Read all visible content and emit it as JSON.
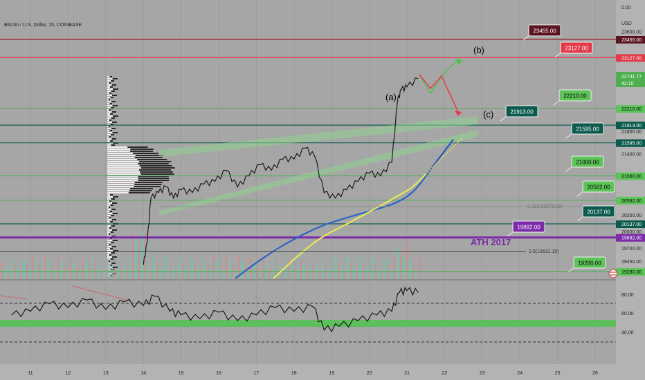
{
  "header": {
    "symbol_title": "Bitcoin / U.S. Dollar, 1h, COINBASE"
  },
  "price_axis": {
    "currency": "USD",
    "top_value": "0.00",
    "ticks": [
      "23600.00",
      "21800.00",
      "21400.00",
      "20300.00",
      "20000.00",
      "19700.00"
    ],
    "current_price": "22741.77",
    "countdown": "42:10"
  },
  "x_axis": {
    "ticks": [
      "11",
      "12",
      "13",
      "14",
      "15",
      "16",
      "17",
      "18",
      "19",
      "20",
      "21",
      "22",
      "23",
      "24",
      "25",
      "26"
    ]
  },
  "rsi_axis": {
    "ticks": [
      "80.00",
      "60.00",
      "40.00"
    ]
  },
  "levels": [
    {
      "label": "23455.00",
      "value": 23455,
      "color": "#7a1b2a",
      "line": "#9b1c2c",
      "tag_bg": "#5a1520",
      "tag_fg": "#ffffff"
    },
    {
      "label": "23127.00",
      "value": 23127,
      "color": "#e33d4b",
      "line": "#e33d4b",
      "tag_bg": "#e23a48",
      "tag_fg": "#ffffff"
    },
    {
      "label": "22210.00",
      "value": 22210,
      "color": "#56c156",
      "line": "#4fae4f",
      "tag_bg": "#5ec45a",
      "tag_fg": "#000000"
    },
    {
      "label": "21913.00",
      "value": 21913,
      "color": "#0d5c4e",
      "line": "#0f5e52",
      "tag_bg": "#0c5a4d",
      "tag_fg": "#ffffff"
    },
    {
      "label": "21595.00",
      "value": 21595,
      "color": "#0d5c4e",
      "line": "#0f5e52",
      "tag_bg": "#0c5a4d",
      "tag_fg": "#ffffff"
    },
    {
      "label": "21000.00",
      "value": 21000,
      "color": "#56c156",
      "line": "#4fae4f",
      "tag_bg": "#5ec45a",
      "tag_fg": "#000000"
    },
    {
      "label": "20562.00",
      "value": 20562,
      "color": "#56c156",
      "line": "#4fae4f",
      "tag_bg": "#5ec45a",
      "tag_fg": "#000000"
    },
    {
      "label": "20137.00",
      "value": 20137,
      "color": "#0d5c4e",
      "line": "#0f5e52",
      "tag_bg": "#0c5a4d",
      "tag_fg": "#ffffff"
    },
    {
      "label": "19892.00",
      "value": 19892,
      "color": "#7b2aa8",
      "line": "#7b2aa8",
      "tag_bg": "#7b2aa8",
      "tag_fg": "#ffffff"
    },
    {
      "label": "19280.00",
      "value": 19280,
      "color": "#56c156",
      "line": "#4fae4f",
      "tag_bg": "#5ec45a",
      "tag_fg": "#000000"
    }
  ],
  "annotations": {
    "wave_a": "(a)",
    "wave_b": "(b)",
    "wave_c": "(c)",
    "ath": "ATH 2017",
    "fib_0382": "0.382(20378.08)",
    "fib_05": "0.5(19631.15)",
    "extra_tick": "19450.00"
  },
  "colors": {
    "background": "#a6a6a6",
    "axis_bg": "#b3b3b3",
    "ath_color": "#7b2aa8",
    "ma_blue": "#2a62c8",
    "ma_yellow": "#e6e65a",
    "channel_green": "#7fd27f",
    "up_arrow": "#4fbf4f",
    "down_arrow": "#e33d4b"
  },
  "chart_data": {
    "type": "line",
    "title": "Bitcoin / U.S. Dollar, 1h, COINBASE",
    "xlabel": "",
    "ylabel": "USD",
    "x_categories": [
      "11",
      "12",
      "13",
      "14",
      "15",
      "16",
      "17",
      "18",
      "19",
      "20",
      "21",
      "22",
      "23",
      "24",
      "25",
      "26"
    ],
    "price_series": {
      "name": "",
      "x": [
        14.0,
        14.1,
        14.2,
        14.4,
        14.6,
        14.8,
        15.0,
        15.3,
        15.6,
        15.9,
        16.2,
        16.5,
        16.8,
        17.1,
        17.4,
        17.7,
        18.0,
        18.3,
        18.55,
        18.8,
        19.1,
        19.4,
        19.7,
        20.0,
        20.3,
        20.6,
        20.75,
        20.85,
        21.0,
        21.3
      ],
      "values": [
        19400,
        19800,
        20600,
        20700,
        20800,
        20600,
        20750,
        20700,
        20850,
        20900,
        21100,
        20800,
        21000,
        21200,
        21100,
        21300,
        21300,
        21500,
        21350,
        20700,
        20600,
        20750,
        20900,
        21050,
        21000,
        21250,
        22350,
        22550,
        22600,
        22750
      ]
    },
    "rsi_series": {
      "name": "",
      "x": [
        10.5,
        11.0,
        11.5,
        12.0,
        12.5,
        13.0,
        13.5,
        14.0,
        14.3,
        14.7,
        15.0,
        15.5,
        16.0,
        16.5,
        17.0,
        17.5,
        18.0,
        18.5,
        18.8,
        19.2,
        19.7,
        20.2,
        20.6,
        20.8,
        21.0,
        21.3
      ],
      "values": [
        58,
        62,
        70,
        66,
        74,
        64,
        72,
        68,
        78,
        62,
        58,
        54,
        61,
        52,
        58,
        66,
        62,
        67,
        42,
        46,
        52,
        58,
        62,
        82,
        84,
        82
      ],
      "ylim": [
        30,
        100
      ]
    },
    "ylim": [
      19200,
      23600
    ]
  }
}
